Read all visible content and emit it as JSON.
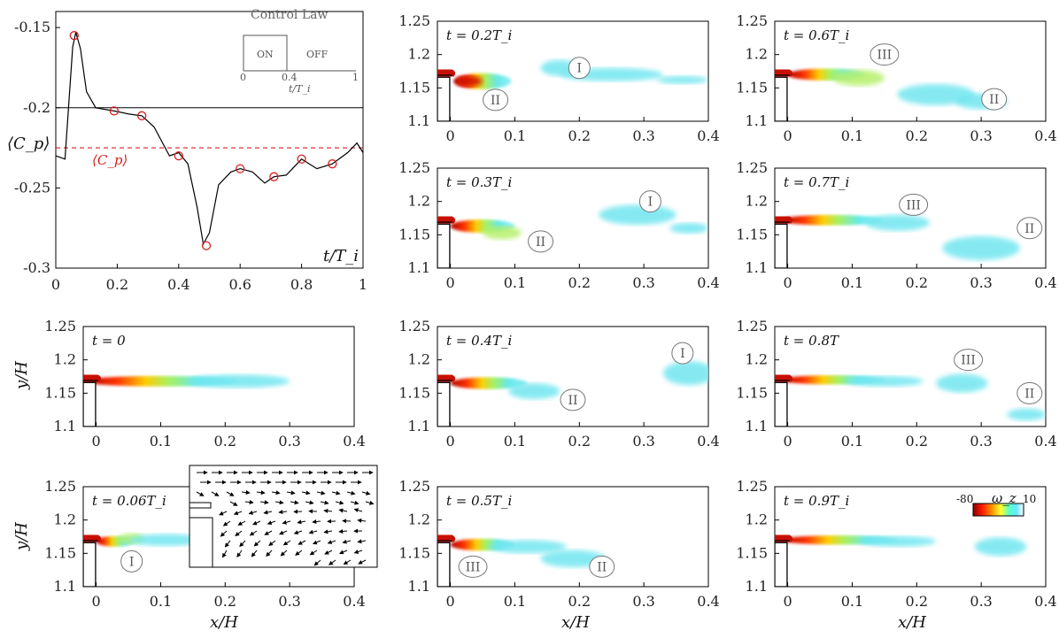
{
  "chart_data": {
    "type": "line",
    "pressure_plot": {
      "x": [
        0,
        0.03,
        0.055,
        0.065,
        0.08,
        0.1,
        0.13,
        0.19,
        0.24,
        0.28,
        0.32,
        0.37,
        0.4,
        0.43,
        0.46,
        0.48,
        0.5,
        0.53,
        0.57,
        0.6,
        0.64,
        0.68,
        0.71,
        0.75,
        0.8,
        0.85,
        0.9,
        0.95,
        0.98,
        1.0
      ],
      "y": [
        -0.23,
        -0.232,
        -0.162,
        -0.153,
        -0.163,
        -0.19,
        -0.2,
        -0.202,
        -0.204,
        -0.205,
        -0.212,
        -0.23,
        -0.228,
        -0.235,
        -0.262,
        -0.285,
        -0.278,
        -0.248,
        -0.24,
        -0.238,
        -0.24,
        -0.247,
        -0.243,
        -0.242,
        -0.232,
        -0.238,
        -0.235,
        -0.228,
        -0.222,
        -0.228
      ],
      "markers_x": [
        0.06,
        0.19,
        0.28,
        0.4,
        0.49,
        0.6,
        0.71,
        0.8,
        0.9
      ],
      "markers_y": [
        -0.155,
        -0.202,
        -0.205,
        -0.23,
        -0.286,
        -0.238,
        -0.243,
        -0.232,
        -0.235
      ],
      "mean_line": -0.225,
      "ref_line": -0.2,
      "xlim": [
        0,
        1
      ],
      "ylim": [
        -0.3,
        -0.14
      ],
      "x_ticks": [
        "0",
        "0.2",
        "0.4",
        "0.6",
        "0.8",
        "1"
      ],
      "y_ticks": [
        "-0.15",
        "-0.2",
        "-0.25",
        "-0.3"
      ],
      "ylabel": "⟨C_p⟩",
      "xlabel": "t/T_i",
      "mean_label": "⟨C_p⟩"
    },
    "control_law": {
      "title": "Control Law",
      "on_label": "ON",
      "off_label": "OFF",
      "switch_time": 0.4,
      "ticks": [
        "0",
        "0.4",
        "1"
      ],
      "xlabel": "t/T_i"
    },
    "vorticity_panels": {
      "xlim": [
        -0.02,
        0.4
      ],
      "ylim": [
        1.1,
        1.25
      ],
      "x_ticks": [
        "0",
        "0.1",
        "0.2",
        "0.3",
        "0.4"
      ],
      "y_ticks": [
        "1.25",
        "1.2",
        "1.15",
        "1.1"
      ],
      "xlabel": "x/H",
      "ylabel": "y/H",
      "panels": [
        {
          "time": "t = 0.2T_i",
          "vortices": [
            {
              "id": "I",
              "x": 0.2,
              "y": 1.18
            },
            {
              "id": "II",
              "x": 0.07,
              "y": 1.132
            }
          ]
        },
        {
          "time": "t = 0.6T_i",
          "vortices": [
            {
              "id": "III",
              "x": 0.15,
              "y": 1.2
            },
            {
              "id": "II",
              "x": 0.32,
              "y": 1.133
            }
          ]
        },
        {
          "time": "t = 0.3T_i",
          "vortices": [
            {
              "id": "I",
              "x": 0.31,
              "y": 1.2
            },
            {
              "id": "II",
              "x": 0.14,
              "y": 1.14
            }
          ]
        },
        {
          "time": "t = 0.7T_i",
          "vortices": [
            {
              "id": "III",
              "x": 0.195,
              "y": 1.195
            },
            {
              "id": "II",
              "x": 0.375,
              "y": 1.16
            }
          ]
        },
        {
          "time": "t = 0",
          "vortices": []
        },
        {
          "time": "t = 0.4T_i",
          "vortices": [
            {
              "id": "I",
              "x": 0.36,
              "y": 1.21
            },
            {
              "id": "II",
              "x": 0.19,
              "y": 1.14
            }
          ]
        },
        {
          "time": "t = 0.8T",
          "vortices": [
            {
              "id": "III",
              "x": 0.28,
              "y": 1.2
            },
            {
              "id": "II",
              "x": 0.375,
              "y": 1.15
            }
          ]
        },
        {
          "time": "t = 0.06T_i",
          "vortices": [
            {
              "id": "I",
              "x": 0.055,
              "y": 1.138
            }
          ]
        },
        {
          "time": "t = 0.5T_i",
          "vortices": [
            {
              "id": "III",
              "x": 0.035,
              "y": 1.13
            },
            {
              "id": "II",
              "x": 0.235,
              "y": 1.13
            }
          ]
        },
        {
          "time": "t = 0.9T_i",
          "vortices": []
        }
      ]
    },
    "colorbar": {
      "label": "ω_z",
      "min": "-80",
      "max": "10"
    }
  }
}
